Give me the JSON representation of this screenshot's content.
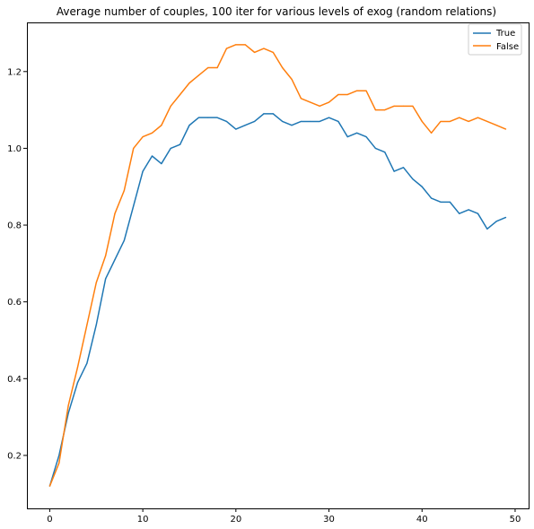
{
  "chart_data": {
    "type": "line",
    "title": "Average number of couples, 100 iter for various levels of exog  (random relations)",
    "xlabel": "",
    "ylabel": "",
    "xlim": [
      -2.45,
      51.45
    ],
    "ylim": [
      0.062,
      1.328
    ],
    "xticks": [
      0,
      10,
      20,
      30,
      40,
      50
    ],
    "yticks": [
      0.2,
      0.4,
      0.6,
      0.8,
      1.0,
      1.2
    ],
    "xtick_labels": [
      "0",
      "10",
      "20",
      "30",
      "40",
      "50"
    ],
    "ytick_labels": [
      "0.2",
      "0.4",
      "0.6",
      "0.8",
      "1.0",
      "1.2"
    ],
    "grid": false,
    "legend_position": "top-right",
    "x": [
      0,
      1,
      2,
      3,
      4,
      5,
      6,
      7,
      8,
      9,
      10,
      11,
      12,
      13,
      14,
      15,
      16,
      17,
      18,
      19,
      20,
      21,
      22,
      23,
      24,
      25,
      26,
      27,
      28,
      29,
      30,
      31,
      32,
      33,
      34,
      35,
      36,
      37,
      38,
      39,
      40,
      41,
      42,
      43,
      44,
      45,
      46,
      47,
      48,
      49
    ],
    "series": [
      {
        "name": "True",
        "color": "#1f77b4",
        "values": [
          0.12,
          0.2,
          0.31,
          0.39,
          0.44,
          0.54,
          0.66,
          0.71,
          0.76,
          0.85,
          0.94,
          0.98,
          0.96,
          1.0,
          1.01,
          1.06,
          1.08,
          1.08,
          1.08,
          1.07,
          1.05,
          1.06,
          1.07,
          1.09,
          1.09,
          1.07,
          1.06,
          1.07,
          1.07,
          1.07,
          1.08,
          1.07,
          1.03,
          1.04,
          1.03,
          1.0,
          0.99,
          0.94,
          0.95,
          0.92,
          0.9,
          0.87,
          0.86,
          0.86,
          0.83,
          0.84,
          0.83,
          0.79,
          0.81,
          0.82
        ]
      },
      {
        "name": "False",
        "color": "#ff7f0e",
        "values": [
          0.12,
          0.18,
          0.33,
          0.43,
          0.54,
          0.65,
          0.72,
          0.83,
          0.89,
          1.0,
          1.03,
          1.04,
          1.06,
          1.11,
          1.14,
          1.17,
          1.19,
          1.21,
          1.21,
          1.26,
          1.27,
          1.27,
          1.25,
          1.26,
          1.25,
          1.21,
          1.18,
          1.13,
          1.12,
          1.11,
          1.12,
          1.14,
          1.14,
          1.15,
          1.15,
          1.1,
          1.1,
          1.11,
          1.11,
          1.11,
          1.07,
          1.04,
          1.07,
          1.07,
          1.08,
          1.07,
          1.08,
          1.07,
          1.06,
          1.05
        ]
      }
    ]
  }
}
